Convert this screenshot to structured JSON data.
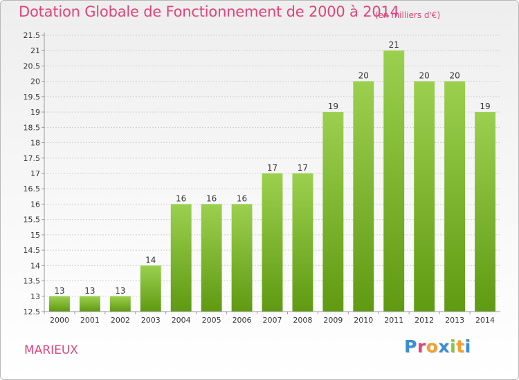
{
  "commune": "MARIEUX",
  "brand": "Proxiti",
  "brand_colors": [
    "#3a8fd0",
    "#e0447a",
    "#f0a030",
    "#3a8fd0",
    "#8cc63f",
    "#f0a030",
    "#3a8fd0"
  ],
  "chart_data": {
    "type": "bar",
    "title": "Dotation Globale de Fonctionnement de 2000 à 2014",
    "subtitle": "(en milliers d'€)",
    "xlabel": "",
    "ylabel": "",
    "categories": [
      "2000",
      "2001",
      "2002",
      "2003",
      "2004",
      "2005",
      "2006",
      "2007",
      "2008",
      "2009",
      "2010",
      "2011",
      "2012",
      "2013",
      "2014"
    ],
    "values": [
      13,
      13,
      13,
      14,
      16,
      16,
      16,
      17,
      17,
      19,
      20,
      21,
      20,
      20,
      19
    ],
    "data_labels": [
      "13",
      "13",
      "13",
      "14",
      "16",
      "16",
      "16",
      "17",
      "17",
      "19",
      "20",
      "21",
      "20",
      "20",
      "19"
    ],
    "ylim": [
      12.5,
      21.5
    ],
    "yticks": [
      12.5,
      13,
      13.5,
      14,
      14.5,
      15,
      15.5,
      16,
      16.5,
      17,
      17.5,
      18,
      18.5,
      19,
      19.5,
      20,
      20.5,
      21,
      21.5
    ],
    "ytick_labels": [
      "12.5",
      "13",
      "13.5",
      "14",
      "14.5",
      "15",
      "15.5",
      "16",
      "16.5",
      "17",
      "17.5",
      "18",
      "18.5",
      "19",
      "19.5",
      "20",
      "20.5",
      "21",
      "21.5"
    ],
    "grid": true,
    "legend": "none",
    "colors": {
      "bar_top": "#9bd04e",
      "bar_bottom": "#5f9a12",
      "grid": "#d0d0d0",
      "axis": "#999999",
      "title": "#e0447a"
    }
  }
}
